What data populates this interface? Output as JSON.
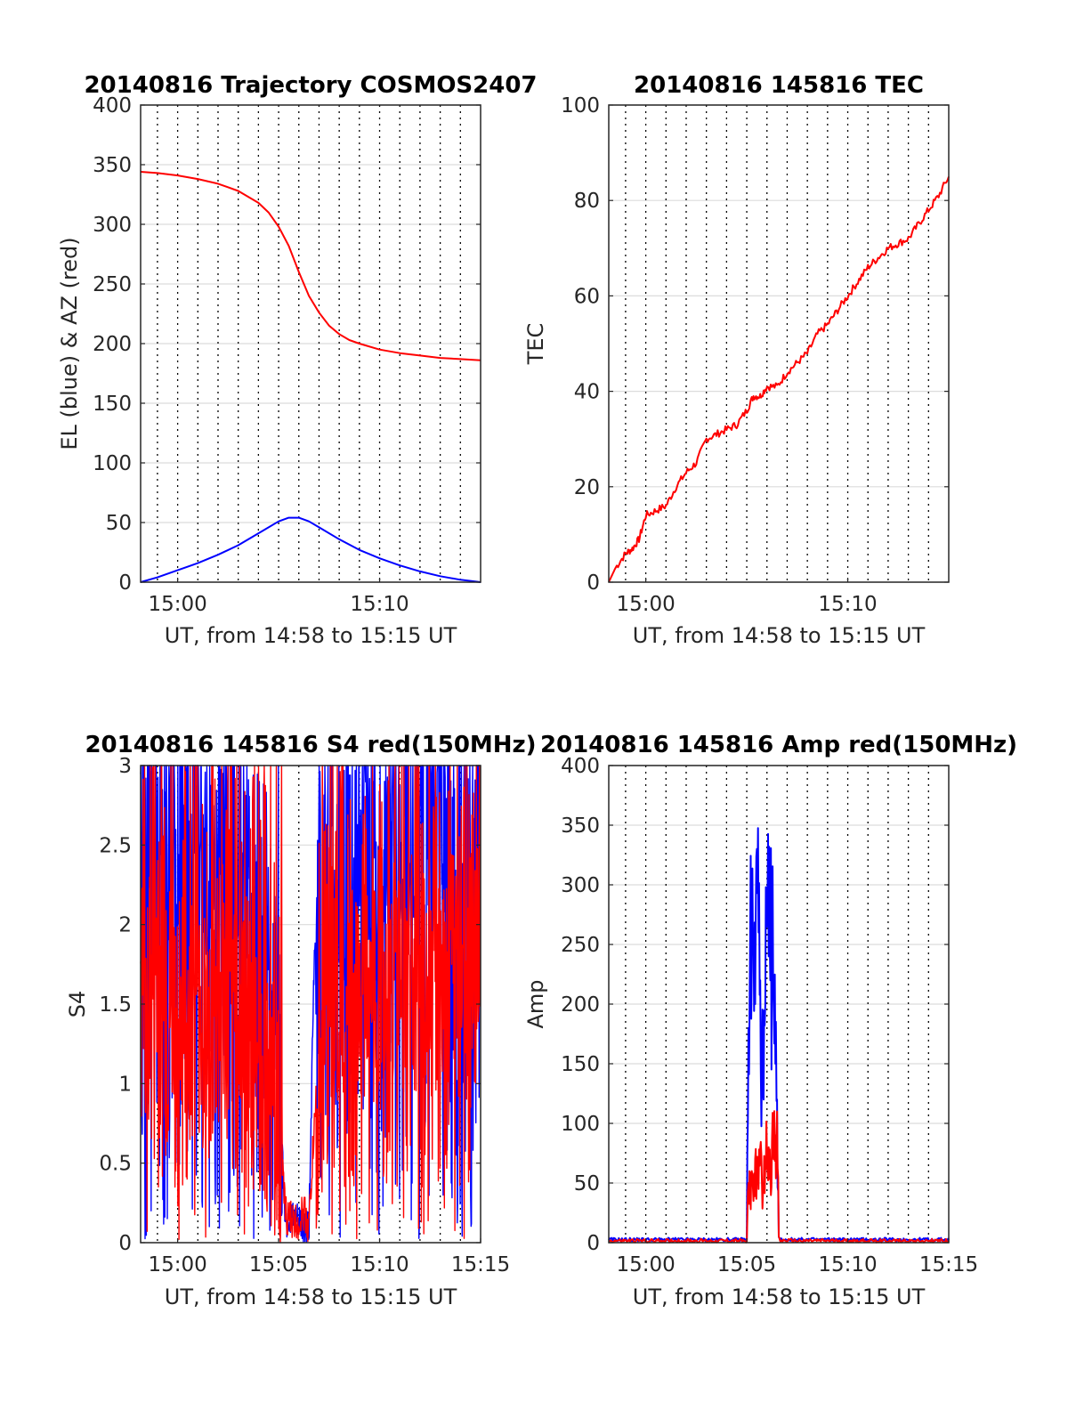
{
  "colors": {
    "el_series": "#0000ff",
    "az_series": "#ff0000",
    "grid_major": "#dcdcdc",
    "grid_minor": "#000000",
    "axis": "#262626"
  },
  "chart_data": [
    {
      "type": "line",
      "title": "20140816 Trajectory COSMOS2407",
      "xlabel": "UT, from 14:58 to 15:15 UT",
      "ylabel": "EL (blue) & AZ (red)",
      "xlim": [
        "14:58:10",
        "15:15:00"
      ],
      "ylim": [
        0,
        400
      ],
      "yticks": [
        0,
        50,
        100,
        150,
        200,
        250,
        300,
        350,
        400
      ],
      "yticklabels": [
        "0",
        "50",
        "100",
        "150",
        "200",
        "250",
        "300",
        "350",
        "400"
      ],
      "xticks": [
        "15:00",
        "15:10"
      ],
      "xticklabels": [
        "15:00",
        "15:10"
      ],
      "grid": true,
      "minor_grid_minutes": 1,
      "series": [
        {
          "name": "AZ (red)",
          "color": "#ff0000",
          "x": [
            "14:58:10",
            "14:59:00",
            "15:00:00",
            "15:01:00",
            "15:02:00",
            "15:03:00",
            "15:04:00",
            "15:04:30",
            "15:05:00",
            "15:05:30",
            "15:06:00",
            "15:06:30",
            "15:07:00",
            "15:07:30",
            "15:08:00",
            "15:08:30",
            "15:09:00",
            "15:10:00",
            "15:11:00",
            "15:12:00",
            "15:13:00",
            "15:14:00",
            "15:15:00"
          ],
          "y": [
            344,
            343,
            341,
            338,
            334,
            328,
            318,
            310,
            298,
            282,
            260,
            240,
            226,
            215,
            208,
            203,
            200,
            195,
            192,
            190,
            188,
            187,
            186
          ]
        },
        {
          "name": "EL (blue)",
          "color": "#0000ff",
          "x": [
            "14:58:10",
            "14:59:00",
            "15:00:00",
            "15:01:00",
            "15:02:00",
            "15:03:00",
            "15:04:00",
            "15:05:00",
            "15:05:30",
            "15:06:00",
            "15:06:30",
            "15:07:00",
            "15:08:00",
            "15:09:00",
            "15:10:00",
            "15:11:00",
            "15:12:00",
            "15:13:00",
            "15:14:00",
            "15:15:00"
          ],
          "y": [
            0,
            4,
            10,
            16,
            23,
            31,
            41,
            51,
            54,
            54,
            51,
            46,
            36,
            27,
            20,
            14,
            9,
            5,
            2,
            0
          ]
        }
      ]
    },
    {
      "type": "line",
      "title": "20140816 145816 TEC",
      "xlabel": "UT, from 14:58 to 15:15 UT",
      "ylabel": "TEC",
      "xlim": [
        "14:58:10",
        "15:15:00"
      ],
      "ylim": [
        0,
        100
      ],
      "yticks": [
        0,
        20,
        40,
        60,
        80,
        100
      ],
      "yticklabels": [
        "0",
        "20",
        "40",
        "60",
        "80",
        "100"
      ],
      "xticks": [
        "15:00",
        "15:10"
      ],
      "xticklabels": [
        "15:00",
        "15:10"
      ],
      "grid": true,
      "minor_grid_minutes": 1,
      "series": [
        {
          "name": "TEC",
          "color": "#ff0000",
          "x": [
            "14:58:10",
            "14:58:30",
            "14:59:00",
            "14:59:20",
            "14:59:40",
            "15:00:00",
            "15:00:30",
            "15:01:00",
            "15:01:30",
            "15:02:00",
            "15:02:30",
            "15:03:00",
            "15:03:30",
            "15:04:00",
            "15:04:30",
            "15:05:00",
            "15:05:20",
            "15:05:40",
            "15:06:00",
            "15:06:30",
            "15:07:00",
            "15:07:30",
            "15:08:00",
            "15:08:30",
            "15:09:00",
            "15:09:30",
            "15:10:00",
            "15:10:30",
            "15:11:00",
            "15:11:30",
            "15:12:00",
            "15:12:30",
            "15:13:00",
            "15:13:30",
            "15:14:00",
            "15:14:30",
            "15:15:00"
          ],
          "y": [
            0,
            3,
            6,
            7,
            9,
            14,
            15,
            16,
            20,
            23,
            25,
            30,
            31,
            32,
            33,
            36,
            39,
            39,
            41,
            41,
            44,
            46,
            48,
            52,
            54,
            57,
            60,
            63,
            66,
            68,
            70,
            71,
            72,
            75,
            78,
            81,
            85
          ]
        }
      ]
    },
    {
      "type": "line",
      "title": "20140816 145816 S4 red(150MHz)",
      "xlabel": "UT, from 14:58 to 15:15 UT",
      "ylabel": "S4",
      "xlim": [
        "14:58:10",
        "15:15:00"
      ],
      "ylim": [
        0,
        3
      ],
      "yticks": [
        0,
        0.5,
        1,
        1.5,
        2,
        2.5,
        3
      ],
      "yticklabels": [
        "0",
        "0.5",
        "1",
        "1.5",
        "2",
        "2.5",
        "3"
      ],
      "xticks": [
        "15:00",
        "15:05",
        "15:10",
        "15:15"
      ],
      "xticklabels": [
        "15:00",
        "15:05",
        "15:10",
        "15:15"
      ],
      "grid": true,
      "minor_grid_minutes": 1,
      "noisy": true,
      "series": [
        {
          "name": "blue",
          "color": "#0000ff",
          "x": [
            "14:58:10",
            "15:00:00",
            "15:02:00",
            "15:03:00",
            "15:04:00",
            "15:04:30",
            "15:05:00",
            "15:05:10",
            "15:05:20",
            "15:05:30",
            "15:05:45",
            "15:06:00",
            "15:06:15",
            "15:06:30",
            "15:06:45",
            "15:07:00",
            "15:08:00",
            "15:09:00",
            "15:10:00",
            "15:12:00",
            "15:15:00"
          ],
          "y": [
            2.8,
            2.7,
            2.6,
            2.4,
            2.2,
            1.8,
            1.5,
            0.6,
            0.15,
            0.15,
            0.12,
            0.13,
            0.1,
            0.1,
            1.7,
            2.3,
            2.4,
            2.6,
            2.7,
            2.8,
            2.9
          ]
        },
        {
          "name": "red",
          "color": "#ff0000",
          "x": [
            "14:58:10",
            "15:00:00",
            "15:02:00",
            "15:03:00",
            "15:04:00",
            "15:04:30",
            "15:05:00",
            "15:05:10",
            "15:05:20",
            "15:05:30",
            "15:05:45",
            "15:06:00",
            "15:06:15",
            "15:06:30",
            "15:06:45",
            "15:07:00",
            "15:07:30",
            "15:08:00",
            "15:09:00",
            "15:10:00",
            "15:12:00",
            "15:15:00"
          ],
          "y": [
            1.5,
            1.4,
            1.3,
            1.2,
            1.0,
            0.9,
            0.8,
            0.5,
            0.2,
            0.15,
            0.12,
            0.13,
            0.2,
            0.1,
            0.7,
            1.0,
            1.3,
            1.5,
            1.6,
            1.6,
            1.7,
            1.8
          ]
        }
      ]
    },
    {
      "type": "line",
      "title": "20140816 145816 Amp red(150MHz)",
      "xlabel": "UT, from 14:58 to 15:15 UT",
      "ylabel": "Amp",
      "xlim": [
        "14:58:10",
        "15:15:00"
      ],
      "ylim": [
        0,
        400
      ],
      "yticks": [
        0,
        50,
        100,
        150,
        200,
        250,
        300,
        350,
        400
      ],
      "yticklabels": [
        "0",
        "50",
        "100",
        "150",
        "200",
        "250",
        "300",
        "350",
        "400"
      ],
      "xticks": [
        "15:00",
        "15:05",
        "15:10",
        "15:15"
      ],
      "xticklabels": [
        "15:00",
        "15:05",
        "15:10",
        "15:15"
      ],
      "grid": true,
      "minor_grid_minutes": 1,
      "series": [
        {
          "name": "blue",
          "color": "#0000ff",
          "x": [
            "14:58:10",
            "15:05:00",
            "15:05:05",
            "15:05:10",
            "15:05:15",
            "15:05:20",
            "15:05:25",
            "15:05:30",
            "15:05:35",
            "15:05:40",
            "15:05:45",
            "15:05:50",
            "15:05:55",
            "15:06:00",
            "15:06:05",
            "15:06:10",
            "15:06:15",
            "15:06:20",
            "15:06:25",
            "15:06:30",
            "15:06:35",
            "15:06:40",
            "15:15:00"
          ],
          "y": [
            2,
            2,
            180,
            255,
            230,
            260,
            200,
            330,
            260,
            220,
            150,
            120,
            200,
            265,
            240,
            220,
            250,
            200,
            150,
            120,
            5,
            2,
            2
          ]
        },
        {
          "name": "red",
          "color": "#ff0000",
          "x": [
            "14:58:10",
            "15:05:00",
            "15:05:05",
            "15:05:10",
            "15:05:15",
            "15:05:20",
            "15:05:25",
            "15:05:30",
            "15:05:35",
            "15:05:40",
            "15:05:45",
            "15:05:50",
            "15:05:55",
            "15:06:00",
            "15:06:05",
            "15:06:10",
            "15:06:15",
            "15:06:20",
            "15:06:25",
            "15:06:30",
            "15:06:35",
            "15:06:40",
            "15:15:00"
          ],
          "y": [
            1,
            1,
            50,
            40,
            60,
            35,
            70,
            55,
            45,
            80,
            50,
            45,
            65,
            75,
            80,
            60,
            85,
            70,
            90,
            110,
            5,
            1,
            1
          ]
        }
      ]
    }
  ]
}
